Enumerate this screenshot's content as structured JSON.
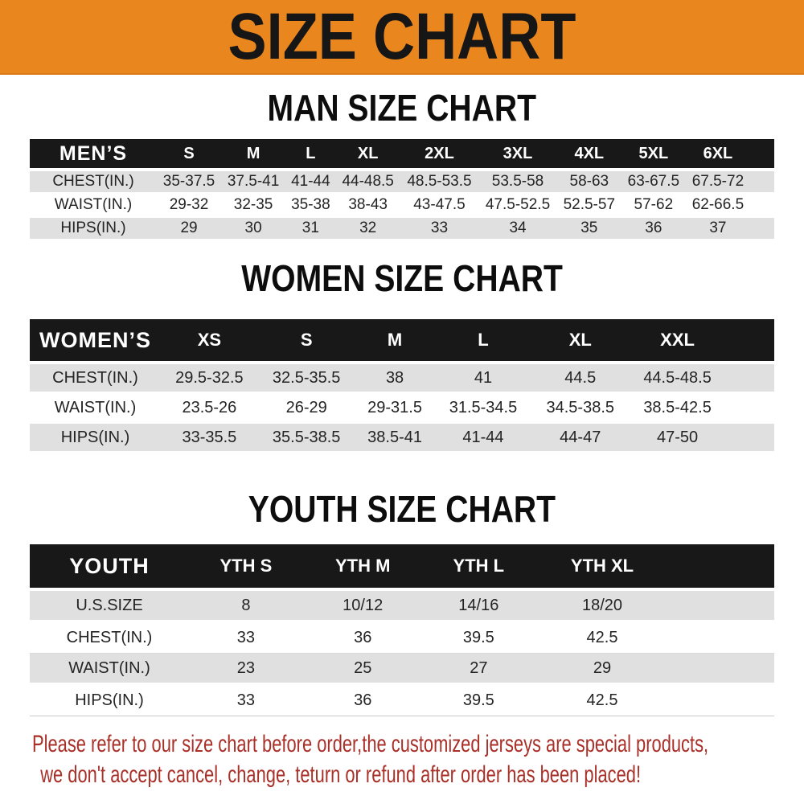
{
  "banner": {
    "title": "SIZE CHART"
  },
  "colors": {
    "banner_bg": "#EA861E",
    "header_bar": "#181818",
    "row_stripe": "#E0E0E0",
    "note_red": "#A93028"
  },
  "chart_data": [
    {
      "type": "table",
      "title": "MAN SIZE CHART",
      "header": [
        "MEN’S",
        "S",
        "M",
        "L",
        "XL",
        "2XL",
        "3XL",
        "4XL",
        "5XL",
        "6XL"
      ],
      "rows": [
        [
          "CHEST(IN.)",
          "35-37.5",
          "37.5-41",
          "41-44",
          "44-48.5",
          "48.5-53.5",
          "53.5-58",
          "58-63",
          "63-67.5",
          "67.5-72"
        ],
        [
          "WAIST(IN.)",
          "29-32",
          "32-35",
          "35-38",
          "38-43",
          "43-47.5",
          "47.5-52.5",
          "52.5-57",
          "57-62",
          "62-66.5"
        ],
        [
          "HIPS(IN.)",
          "29",
          "30",
          "31",
          "32",
          "33",
          "34",
          "35",
          "36",
          "37"
        ]
      ]
    },
    {
      "type": "table",
      "title": "WOMEN SIZE CHART",
      "header": [
        "WOMEN’S",
        "XS",
        "S",
        "M",
        "L",
        "XL",
        "XXL"
      ],
      "rows": [
        [
          "CHEST(IN.)",
          "29.5-32.5",
          "32.5-35.5",
          "38",
          "41",
          "44.5",
          "44.5-48.5"
        ],
        [
          "WAIST(IN.)",
          "23.5-26",
          "26-29",
          "29-31.5",
          "31.5-34.5",
          "34.5-38.5",
          "38.5-42.5"
        ],
        [
          "HIPS(IN.)",
          "33-35.5",
          "35.5-38.5",
          "38.5-41",
          "41-44",
          "44-47",
          "47-50"
        ]
      ]
    },
    {
      "type": "table",
      "title": "YOUTH SIZE CHART",
      "header": [
        "YOUTH",
        "YTH S",
        "YTH M",
        "YTH L",
        "YTH XL"
      ],
      "rows": [
        [
          "U.S.SIZE",
          "8",
          "10/12",
          "14/16",
          "18/20"
        ],
        [
          "CHEST(IN.)",
          "33",
          "36",
          "39.5",
          "42.5"
        ],
        [
          "WAIST(IN.)",
          "23",
          "25",
          "27",
          "29"
        ],
        [
          "HIPS(IN.)",
          "33",
          "36",
          "39.5",
          "42.5"
        ]
      ]
    }
  ],
  "footnote": {
    "line1": "Please refer to our size chart before order,the customized jerseys are special products,",
    "line2": "we don't accept cancel, change, teturn or refund after order has been placed!"
  }
}
